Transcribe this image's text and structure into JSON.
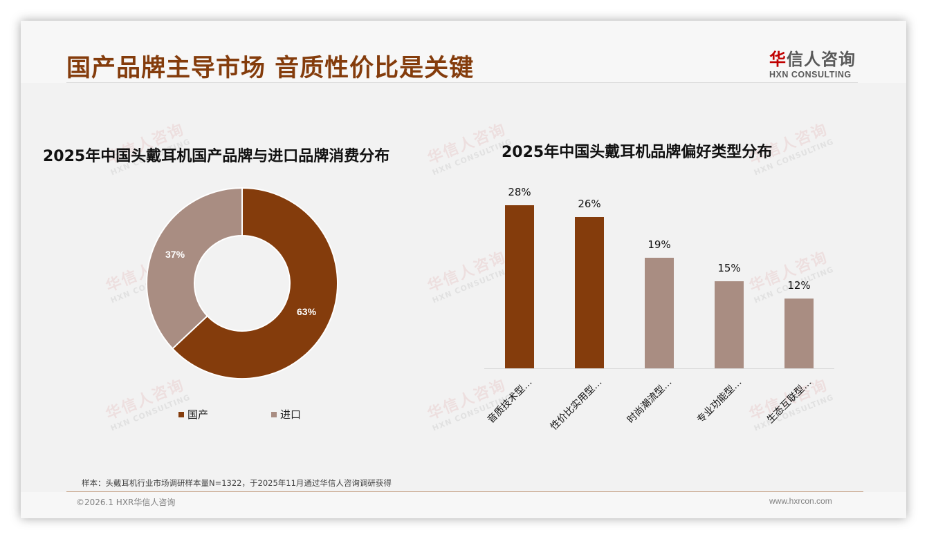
{
  "header": {
    "title": "国产品牌主导市场 音质性价比是关键",
    "logo_cn_first": "华",
    "logo_cn_rest": "信人咨询",
    "logo_en": "HXN CONSULTING"
  },
  "watermark": {
    "cn": "华信人咨询",
    "en": "HXN CONSULTING"
  },
  "colors": {
    "primary": "#843c0c",
    "secondary": "#a98d82",
    "title": "#843c0c",
    "logo_red": "#c00000"
  },
  "chart_data": [
    {
      "type": "pie",
      "variant": "donut",
      "title": "2025年中国头戴耳机国产品牌与进口品牌消费分布",
      "categories": [
        "国产",
        "进口"
      ],
      "values": [
        63,
        37
      ],
      "labels": [
        "63%",
        "37%"
      ],
      "colors": [
        "#843c0c",
        "#a98d82"
      ],
      "legend_position": "bottom"
    },
    {
      "type": "bar",
      "title": "2025年中国头戴耳机品牌偏好类型分布",
      "categories": [
        "音质技术型…",
        "性价比实用型…",
        "时尚潮流型…",
        "专业功能型…",
        "生态互联型…"
      ],
      "values": [
        28,
        26,
        19,
        15,
        12
      ],
      "labels": [
        "28%",
        "26%",
        "19%",
        "15%",
        "12%"
      ],
      "colors": [
        "#843c0c",
        "#843c0c",
        "#a98d82",
        "#a98d82",
        "#a98d82"
      ],
      "xlabel": "",
      "ylabel": "",
      "ylim": [
        0,
        30
      ],
      "grid": false
    }
  ],
  "legend": [
    {
      "label": "国产",
      "color": "#843c0c"
    },
    {
      "label": "进口",
      "color": "#a98d82"
    }
  ],
  "footer": {
    "note": "样本：头戴耳机行业市场调研样本量N=1322，于2025年11月通过华信人咨询调研获得",
    "copyright": "©2026.1 HXR华信人咨询",
    "website": "www.hxrcon.com"
  }
}
